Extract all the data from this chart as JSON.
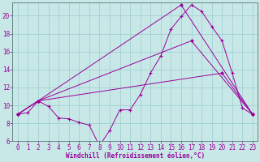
{
  "xlabel": "Windchill (Refroidissement éolien,°C)",
  "xlim": [
    -0.5,
    23.5
  ],
  "ylim": [
    6,
    21.5
  ],
  "yticks": [
    6,
    8,
    10,
    12,
    14,
    16,
    18,
    20
  ],
  "xticks": [
    0,
    1,
    2,
    3,
    4,
    5,
    6,
    7,
    8,
    9,
    10,
    11,
    12,
    13,
    14,
    15,
    16,
    17,
    18,
    19,
    20,
    21,
    22,
    23
  ],
  "bg_color": "#c8e8e8",
  "line_color": "#990099",
  "grid_color": "#99cccc",
  "line_main": {
    "x": [
      0,
      1,
      2,
      3,
      4,
      5,
      6,
      7,
      8,
      9,
      10,
      11,
      12,
      13,
      14,
      15,
      16,
      17,
      18,
      19,
      20,
      21,
      22,
      23
    ],
    "y": [
      9.0,
      9.2,
      10.5,
      9.9,
      8.6,
      8.5,
      8.1,
      7.8,
      5.5,
      7.2,
      9.5,
      9.5,
      11.2,
      13.6,
      15.5,
      18.5,
      19.9,
      21.2,
      20.5,
      18.8,
      17.2,
      13.6,
      9.7,
      9.0
    ]
  },
  "line_upper": {
    "x": [
      0,
      2,
      16,
      23
    ],
    "y": [
      9.0,
      10.5,
      21.2,
      9.0
    ]
  },
  "line_mid": {
    "x": [
      0,
      2,
      17,
      23
    ],
    "y": [
      9.0,
      10.5,
      17.2,
      9.0
    ]
  },
  "line_lower": {
    "x": [
      0,
      2,
      20,
      23
    ],
    "y": [
      9.0,
      10.5,
      13.6,
      9.0
    ]
  }
}
